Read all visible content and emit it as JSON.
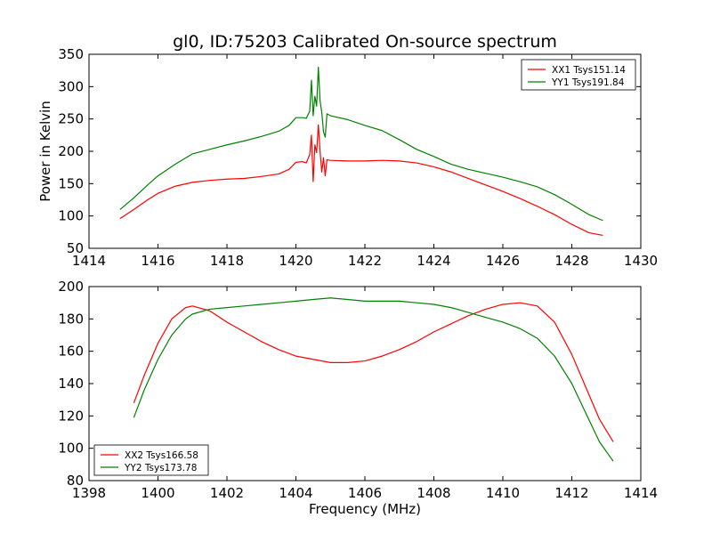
{
  "title": "gl0, ID:75203 Calibrated On-source spectrum",
  "colors": {
    "red": "#ff0000",
    "green": "#008000"
  },
  "chart_data": [
    {
      "type": "line",
      "title": "gl0, ID:75203 Calibrated On-source spectrum",
      "xlabel": "",
      "ylabel": "Power in Kelvin",
      "xlim": [
        1414,
        1430
      ],
      "ylim": [
        50,
        350
      ],
      "xticks": [
        "1414",
        "1416",
        "1418",
        "1420",
        "1422",
        "1424",
        "1426",
        "1428",
        "1430"
      ],
      "yticks": [
        "50",
        "100",
        "150",
        "200",
        "250",
        "300",
        "350"
      ],
      "legend_position": "top-right",
      "grid": false,
      "series": [
        {
          "name": "XX1 Tsys151.14",
          "color": "#ff0000",
          "x": [
            1414.9,
            1415.3,
            1415.7,
            1416.0,
            1416.5,
            1417.0,
            1417.5,
            1418.0,
            1418.5,
            1419.0,
            1419.5,
            1419.8,
            1420.0,
            1420.2,
            1420.3,
            1420.4,
            1420.45,
            1420.5,
            1420.55,
            1420.6,
            1420.65,
            1420.7,
            1420.75,
            1420.8,
            1420.85,
            1420.9,
            1421.0,
            1421.5,
            1422.0,
            1422.5,
            1423.0,
            1423.5,
            1424.0,
            1424.5,
            1425.0,
            1425.5,
            1426.0,
            1426.5,
            1427.0,
            1427.5,
            1428.0,
            1428.5,
            1428.9
          ],
          "y": [
            96,
            110,
            125,
            135,
            146,
            152,
            155,
            157,
            158,
            161,
            165,
            172,
            183,
            184,
            182,
            195,
            225,
            153,
            210,
            198,
            241,
            200,
            168,
            190,
            162,
            187,
            186,
            185,
            185,
            186,
            185,
            182,
            176,
            168,
            158,
            148,
            138,
            127,
            115,
            102,
            87,
            74,
            70
          ]
        },
        {
          "name": "YY1 Tsys191.84",
          "color": "#008000",
          "x": [
            1414.9,
            1415.3,
            1415.7,
            1416.0,
            1416.5,
            1417.0,
            1417.5,
            1418.0,
            1418.5,
            1419.0,
            1419.5,
            1419.8,
            1420.0,
            1420.2,
            1420.3,
            1420.4,
            1420.45,
            1420.5,
            1420.55,
            1420.6,
            1420.65,
            1420.7,
            1420.75,
            1420.8,
            1420.85,
            1420.9,
            1421.0,
            1421.5,
            1422.0,
            1422.5,
            1423.0,
            1423.5,
            1424.0,
            1424.5,
            1425.0,
            1425.5,
            1426.0,
            1426.5,
            1427.0,
            1427.5,
            1428.0,
            1428.5,
            1428.9
          ],
          "y": [
            110,
            128,
            148,
            162,
            180,
            196,
            203,
            210,
            216,
            223,
            231,
            240,
            252,
            252,
            251,
            262,
            310,
            255,
            285,
            270,
            330,
            278,
            260,
            230,
            222,
            258,
            255,
            249,
            240,
            232,
            218,
            203,
            192,
            180,
            172,
            166,
            160,
            153,
            145,
            133,
            118,
            102,
            93
          ]
        }
      ]
    },
    {
      "type": "line",
      "title": "",
      "xlabel": "Frequency (MHz)",
      "ylabel": "",
      "xlim": [
        1398,
        1414
      ],
      "ylim": [
        80,
        200
      ],
      "xticks": [
        "1398",
        "1400",
        "1402",
        "1404",
        "1406",
        "1408",
        "1410",
        "1412",
        "1414"
      ],
      "yticks": [
        "80",
        "100",
        "120",
        "140",
        "160",
        "180",
        "200"
      ],
      "legend_position": "bottom-left",
      "grid": false,
      "series": [
        {
          "name": "XX2 Tsys166.58",
          "color": "#ff0000",
          "x": [
            1399.3,
            1399.6,
            1400.0,
            1400.4,
            1400.8,
            1401.0,
            1401.5,
            1402.0,
            1402.5,
            1403.0,
            1403.5,
            1404.0,
            1404.5,
            1405.0,
            1405.5,
            1406.0,
            1406.5,
            1407.0,
            1407.5,
            1408.0,
            1408.5,
            1409.0,
            1409.5,
            1410.0,
            1410.5,
            1411.0,
            1411.5,
            1412.0,
            1412.4,
            1412.8,
            1413.2
          ],
          "y": [
            128,
            145,
            165,
            180,
            187,
            188,
            185,
            178,
            172,
            166,
            161,
            157,
            155,
            153,
            153,
            154,
            157,
            161,
            166,
            172,
            177,
            182,
            186,
            189,
            190,
            188,
            178,
            158,
            138,
            118,
            104
          ]
        },
        {
          "name": "YY2 Tsys173.78",
          "color": "#008000",
          "x": [
            1399.3,
            1399.6,
            1400.0,
            1400.4,
            1400.8,
            1401.0,
            1401.5,
            1402.0,
            1402.5,
            1403.0,
            1403.5,
            1404.0,
            1404.5,
            1405.0,
            1405.5,
            1406.0,
            1406.5,
            1407.0,
            1407.5,
            1408.0,
            1408.5,
            1409.0,
            1409.5,
            1410.0,
            1410.5,
            1411.0,
            1411.5,
            1412.0,
            1412.4,
            1412.8,
            1413.2
          ],
          "y": [
            119,
            136,
            155,
            170,
            180,
            183,
            186,
            187,
            188,
            189,
            190,
            191,
            192,
            193,
            192,
            191,
            191,
            191,
            190,
            189,
            187,
            184,
            181,
            178,
            174,
            168,
            157,
            140,
            122,
            104,
            92
          ]
        }
      ]
    }
  ]
}
